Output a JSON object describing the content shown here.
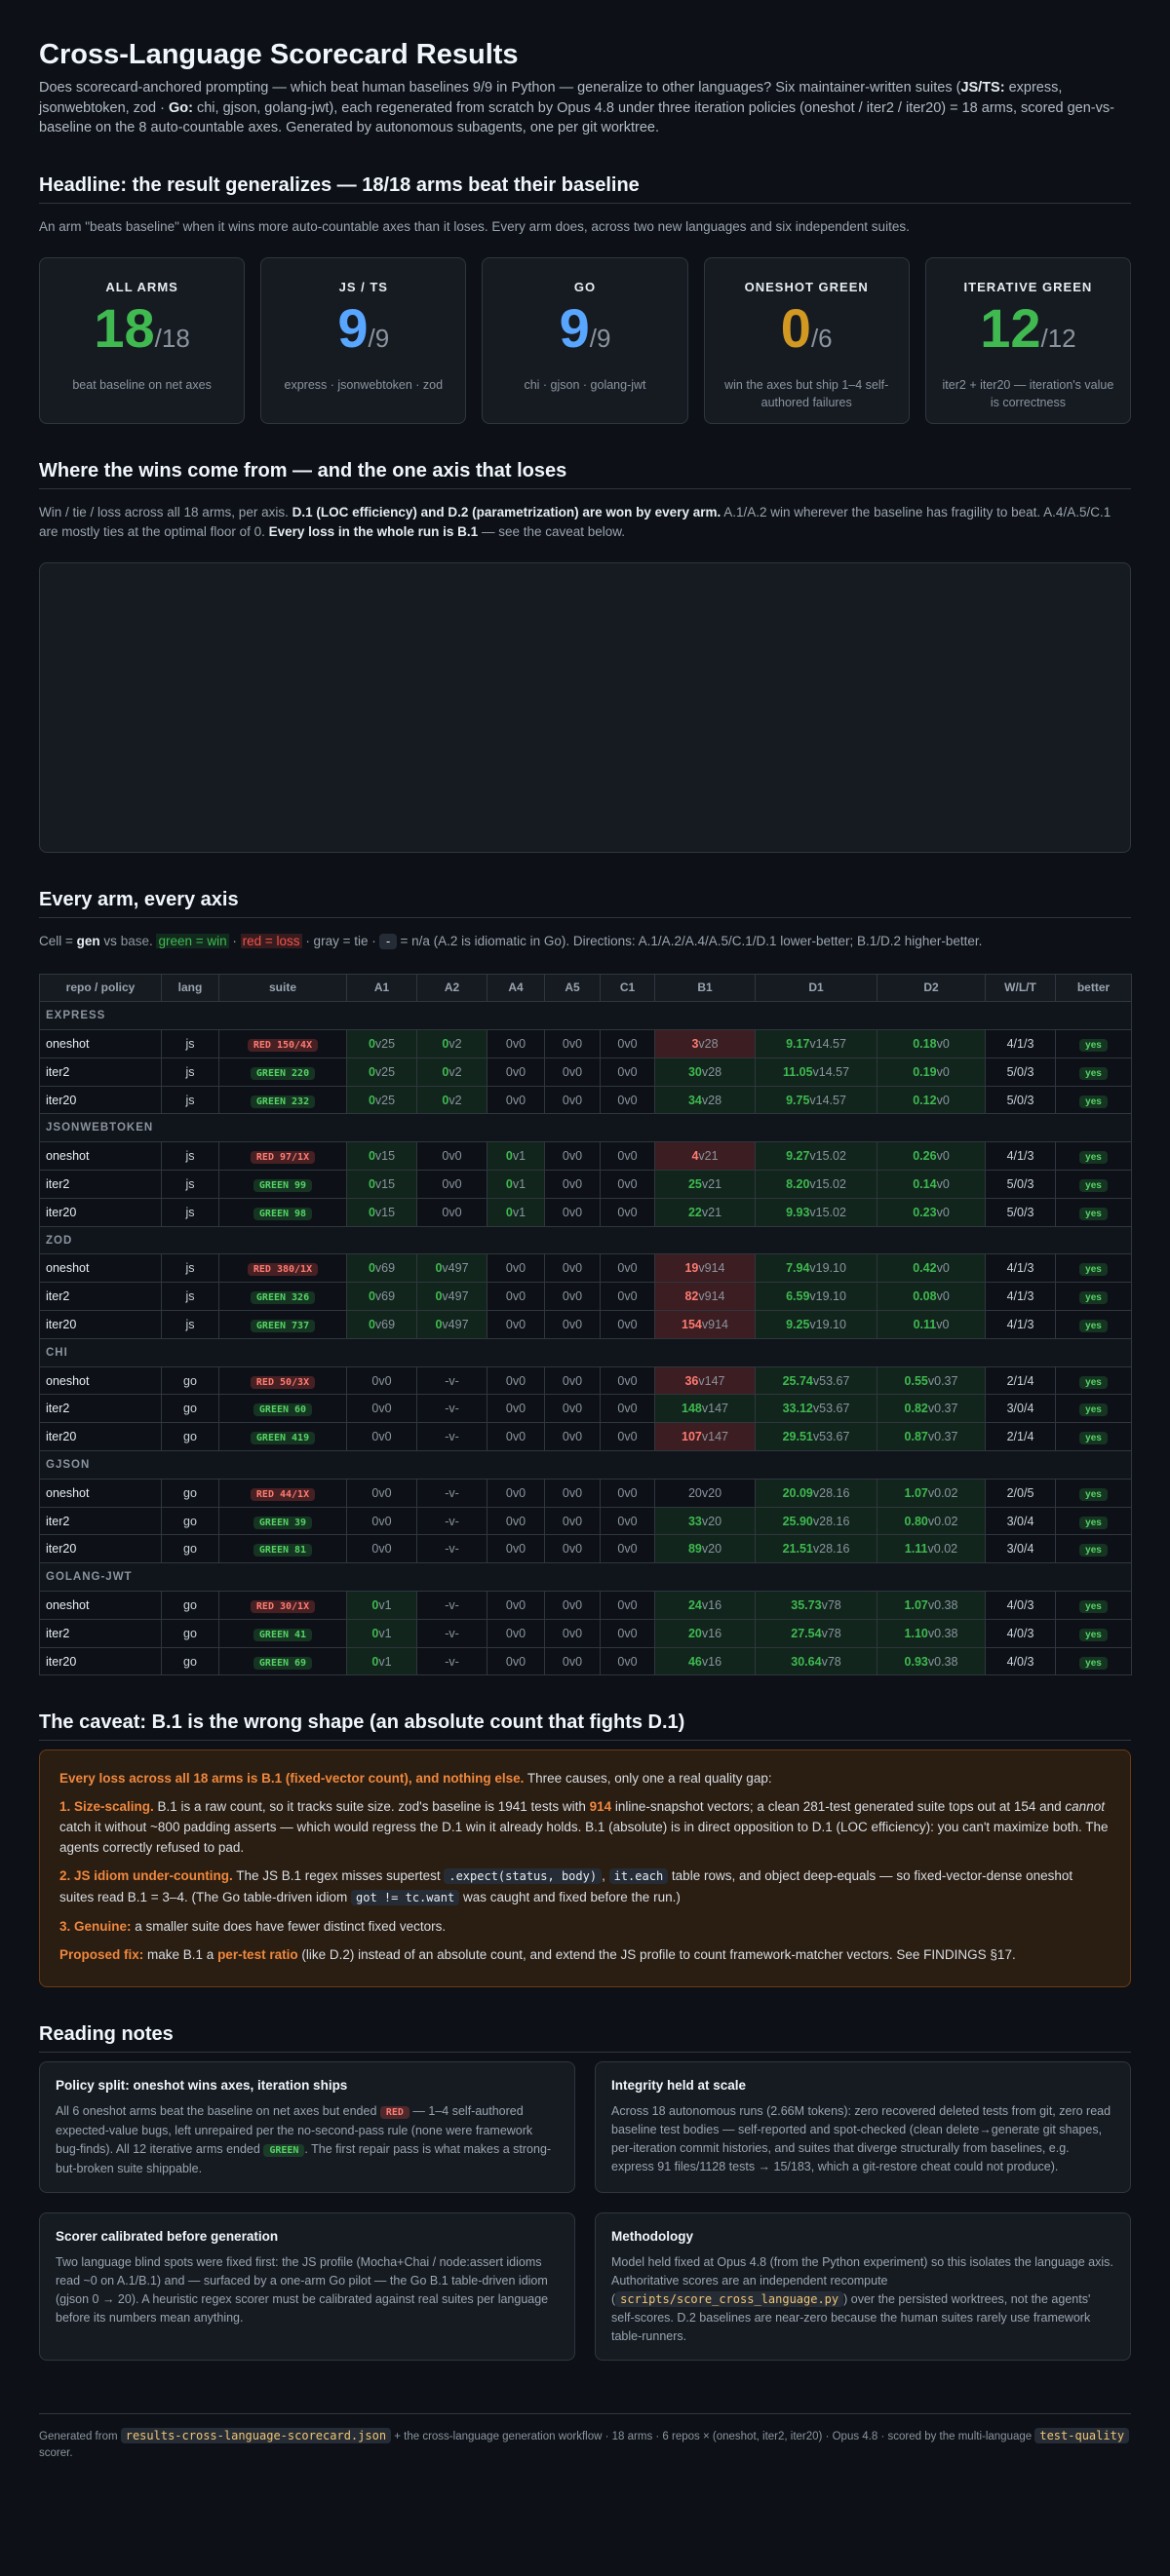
{
  "header": {
    "title": "Cross-Language Scorecard Results",
    "intro": [
      "Does scorecard-anchored prompting — which beat human baselines 9/9 in Python — generalize to other languages? Six maintainer-written suites (",
      {
        "text": "JS/TS:",
        "style": "bold"
      },
      " express, jsonwebtoken, zod · ",
      {
        "text": "Go:",
        "style": "bold"
      },
      " chi, gjson, golang-jwt), each regenerated from scratch by Opus 4.8 under three iteration policies (oneshot / iter2 / iter20) = 18 arms, scored gen-vs-baseline on the 8 auto-countable axes. Generated by autonomous subagents, one per git worktree."
    ]
  },
  "headline": {
    "title": "Headline: the result generalizes — 18/18 arms beat their baseline",
    "desc": "An arm \"beats baseline\" when it wins more auto-countable axes than it loses. Every arm does, across two new languages and six independent suites.",
    "cards": [
      {
        "label": "ALL ARMS",
        "big": "18",
        "denom": "/18",
        "color": "#3fb950",
        "desc": "beat baseline on net axes"
      },
      {
        "label": "JS / TS",
        "big": "9",
        "denom": "/9",
        "color": "#58a6ff",
        "desc": "express · jsonwebtoken · zod"
      },
      {
        "label": "GO",
        "big": "9",
        "denom": "/9",
        "color": "#58a6ff",
        "desc": "chi · gjson · golang-jwt"
      },
      {
        "label": "ONESHOT GREEN",
        "big": "0",
        "denom": "/6",
        "color": "#d29922",
        "desc": "win the axes but ship 1–4 self-authored failures"
      },
      {
        "label": "ITERATIVE GREEN",
        "big": "12",
        "denom": "/12",
        "color": "#3fb950",
        "desc": "iter2 + iter20 — iteration's value is correctness"
      }
    ]
  },
  "wins": {
    "title": "Where the wins come from — and the one axis that loses",
    "desc": [
      "Win / tie / loss across all 18 arms, per axis. ",
      {
        "text": "D.1 (LOC efficiency) and D.2 (parametrization) are won by every arm.",
        "style": "bold"
      },
      " A.1/A.2 win wherever the baseline has fragility to beat. A.4/A.5/C.1 are mostly ties at the optimal floor of 0. ",
      {
        "text": "Every loss in the whole run is B.1",
        "style": "bold"
      },
      " — see the caveat below."
    ]
  },
  "table": {
    "title": "Every arm, every axis",
    "legend": [
      "Cell = ",
      {
        "text": "gen",
        "style": "bold"
      },
      " vs ",
      {
        "text": "base",
        "style": "gray"
      },
      ". ",
      {
        "text": "green = win",
        "style": "win"
      },
      " · ",
      {
        "text": "red = loss",
        "style": "loss"
      },
      " · gray = tie · ",
      {
        "text": "-",
        "style": "code"
      },
      " = n/a (A.2 is idiomatic in Go). Directions: A.1/A.2/A.4/A.5/C.1/D.1 lower-better; B.1/D.2 higher-better."
    ],
    "columns": [
      "repo / policy",
      "lang",
      "suite",
      "A1",
      "A2",
      "A4",
      "A5",
      "C1",
      "B1",
      "D1",
      "D2",
      "W/L/T",
      "better"
    ],
    "axis_direction": [
      "lower",
      "lower",
      "lower",
      "lower",
      "lower",
      "higher",
      "lower",
      "higher"
    ],
    "groups": [
      {
        "name": "EXPRESS",
        "rows": [
          {
            "policy": "oneshot",
            "lang": "js",
            "suite": {
              "text": "RED 150/4X",
              "color": "red"
            },
            "cells": [
              "0v25",
              "0v2",
              "0v0",
              "0v0",
              "0v0",
              "3v28",
              "9.17v14.57",
              "0.18v0"
            ],
            "wlt": "4/1/3",
            "better": "yes"
          },
          {
            "policy": "iter2",
            "lang": "js",
            "suite": {
              "text": "GREEN 220",
              "color": "green"
            },
            "cells": [
              "0v25",
              "0v2",
              "0v0",
              "0v0",
              "0v0",
              "30v28",
              "11.05v14.57",
              "0.19v0"
            ],
            "wlt": "5/0/3",
            "better": "yes"
          },
          {
            "policy": "iter20",
            "lang": "js",
            "suite": {
              "text": "GREEN 232",
              "color": "green"
            },
            "cells": [
              "0v25",
              "0v2",
              "0v0",
              "0v0",
              "0v0",
              "34v28",
              "9.75v14.57",
              "0.12v0"
            ],
            "wlt": "5/0/3",
            "better": "yes"
          }
        ]
      },
      {
        "name": "JSONWEBTOKEN",
        "rows": [
          {
            "policy": "oneshot",
            "lang": "js",
            "suite": {
              "text": "RED 97/1X",
              "color": "red"
            },
            "cells": [
              "0v15",
              "0v0",
              "0v1",
              "0v0",
              "0v0",
              "4v21",
              "9.27v15.02",
              "0.26v0"
            ],
            "wlt": "4/1/3",
            "better": "yes"
          },
          {
            "policy": "iter2",
            "lang": "js",
            "suite": {
              "text": "GREEN 99",
              "color": "green"
            },
            "cells": [
              "0v15",
              "0v0",
              "0v1",
              "0v0",
              "0v0",
              "25v21",
              "8.20v15.02",
              "0.14v0"
            ],
            "wlt": "5/0/3",
            "better": "yes"
          },
          {
            "policy": "iter20",
            "lang": "js",
            "suite": {
              "text": "GREEN 98",
              "color": "green"
            },
            "cells": [
              "0v15",
              "0v0",
              "0v1",
              "0v0",
              "0v0",
              "22v21",
              "9.93v15.02",
              "0.23v0"
            ],
            "wlt": "5/0/3",
            "better": "yes"
          }
        ]
      },
      {
        "name": "ZOD",
        "rows": [
          {
            "policy": "oneshot",
            "lang": "js",
            "suite": {
              "text": "RED 380/1X",
              "color": "red"
            },
            "cells": [
              "0v69",
              "0v497",
              "0v0",
              "0v0",
              "0v0",
              "19v914",
              "7.94v19.10",
              "0.42v0"
            ],
            "wlt": "4/1/3",
            "better": "yes"
          },
          {
            "policy": "iter2",
            "lang": "js",
            "suite": {
              "text": "GREEN 326",
              "color": "green"
            },
            "cells": [
              "0v69",
              "0v497",
              "0v0",
              "0v0",
              "0v0",
              "82v914",
              "6.59v19.10",
              "0.08v0"
            ],
            "wlt": "4/1/3",
            "better": "yes"
          },
          {
            "policy": "iter20",
            "lang": "js",
            "suite": {
              "text": "GREEN 737",
              "color": "green"
            },
            "cells": [
              "0v69",
              "0v497",
              "0v0",
              "0v0",
              "0v0",
              "154v914",
              "9.25v19.10",
              "0.11v0"
            ],
            "wlt": "4/1/3",
            "better": "yes"
          }
        ]
      },
      {
        "name": "CHI",
        "rows": [
          {
            "policy": "oneshot",
            "lang": "go",
            "suite": {
              "text": "RED 50/3X",
              "color": "red"
            },
            "cells": [
              "0v0",
              "-v-",
              "0v0",
              "0v0",
              "0v0",
              "36v147",
              "25.74v53.67",
              "0.55v0.37"
            ],
            "wlt": "2/1/4",
            "better": "yes"
          },
          {
            "policy": "iter2",
            "lang": "go",
            "suite": {
              "text": "GREEN 60",
              "color": "green"
            },
            "cells": [
              "0v0",
              "-v-",
              "0v0",
              "0v0",
              "0v0",
              "148v147",
              "33.12v53.67",
              "0.82v0.37"
            ],
            "wlt": "3/0/4",
            "better": "yes"
          },
          {
            "policy": "iter20",
            "lang": "go",
            "suite": {
              "text": "GREEN 419",
              "color": "green"
            },
            "cells": [
              "0v0",
              "-v-",
              "0v0",
              "0v0",
              "0v0",
              "107v147",
              "29.51v53.67",
              "0.87v0.37"
            ],
            "wlt": "2/1/4",
            "better": "yes"
          }
        ]
      },
      {
        "name": "GJSON",
        "rows": [
          {
            "policy": "oneshot",
            "lang": "go",
            "suite": {
              "text": "RED 44/1X",
              "color": "red"
            },
            "cells": [
              "0v0",
              "-v-",
              "0v0",
              "0v0",
              "0v0",
              "20v20",
              "20.09v28.16",
              "1.07v0.02"
            ],
            "wlt": "2/0/5",
            "better": "yes"
          },
          {
            "policy": "iter2",
            "lang": "go",
            "suite": {
              "text": "GREEN 39",
              "color": "green"
            },
            "cells": [
              "0v0",
              "-v-",
              "0v0",
              "0v0",
              "0v0",
              "33v20",
              "25.90v28.16",
              "0.80v0.02"
            ],
            "wlt": "3/0/4",
            "better": "yes"
          },
          {
            "policy": "iter20",
            "lang": "go",
            "suite": {
              "text": "GREEN 81",
              "color": "green"
            },
            "cells": [
              "0v0",
              "-v-",
              "0v0",
              "0v0",
              "0v0",
              "89v20",
              "21.51v28.16",
              "1.11v0.02"
            ],
            "wlt": "3/0/4",
            "better": "yes"
          }
        ]
      },
      {
        "name": "GOLANG-JWT",
        "rows": [
          {
            "policy": "oneshot",
            "lang": "go",
            "suite": {
              "text": "RED 30/1X",
              "color": "red"
            },
            "cells": [
              "0v1",
              "-v-",
              "0v0",
              "0v0",
              "0v0",
              "24v16",
              "35.73v78",
              "1.07v0.38"
            ],
            "wlt": "4/0/3",
            "better": "yes"
          },
          {
            "policy": "iter2",
            "lang": "go",
            "suite": {
              "text": "GREEN 41",
              "color": "green"
            },
            "cells": [
              "0v1",
              "-v-",
              "0v0",
              "0v0",
              "0v0",
              "20v16",
              "27.54v78",
              "1.10v0.38"
            ],
            "wlt": "4/0/3",
            "better": "yes"
          },
          {
            "policy": "iter20",
            "lang": "go",
            "suite": {
              "text": "GREEN 69",
              "color": "green"
            },
            "cells": [
              "0v1",
              "-v-",
              "0v0",
              "0v0",
              "0v0",
              "46v16",
              "30.64v78",
              "0.93v0.38"
            ],
            "wlt": "4/0/3",
            "better": "yes"
          }
        ]
      }
    ]
  },
  "caveat": {
    "title": "The caveat: B.1 is the wrong shape (an absolute count that fights D.1)",
    "paragraphs": [
      [
        {
          "text": "Every loss across all 18 arms is B.1 (fixed-vector count), and nothing else.",
          "style": "orange"
        },
        " Three causes, only one a real quality gap:"
      ],
      [
        {
          "text": "1. Size-scaling.",
          "style": "orange"
        },
        " B.1 is a raw count, so it tracks suite size. zod's baseline is 1941 tests with ",
        {
          "text": "914",
          "style": "orange"
        },
        " inline-snapshot vectors; a clean 281-test generated suite tops out at 154 and ",
        {
          "text": "cannot",
          "style": "italic"
        },
        " catch it without ~800 padding asserts — which would regress the D.1 win it already holds. B.1 (absolute) is in direct opposition to D.1 (LOC efficiency): you can't maximize both. The agents correctly refused to pad."
      ],
      [
        {
          "text": "2. JS idiom under-counting.",
          "style": "orange"
        },
        " The JS B.1 regex misses supertest ",
        {
          "text": ".expect(status, body)",
          "style": "code"
        },
        ", ",
        {
          "text": "it.each",
          "style": "code"
        },
        " table rows, and object deep-equals — so fixed-vector-dense oneshot suites read B.1 = 3–4. (The Go table-driven idiom ",
        {
          "text": "got != tc.want",
          "style": "code"
        },
        " was caught and fixed before the run.)"
      ],
      [
        {
          "text": "3. Genuine:",
          "style": "orange"
        },
        " a smaller suite does have fewer distinct fixed vectors."
      ],
      [
        {
          "text": "Proposed fix:",
          "style": "orange"
        },
        " make B.1 a ",
        {
          "text": "per-test ratio",
          "style": "orange"
        },
        " (like D.2) instead of an absolute count, and extend the JS profile to count framework-matcher vectors. See FINDINGS §17."
      ]
    ]
  },
  "notes": {
    "title": "Reading notes",
    "cards": [
      {
        "title": "Policy split: oneshot wins axes, iteration ships",
        "body": [
          "All 6 oneshot arms beat the baseline on net axes but ended ",
          {
            "text": "RED",
            "style": "badge-red"
          },
          " — 1–4 self-authored expected-value bugs, left unrepaired per the no-second-pass rule (none were framework bug-finds). All 12 iterative arms ended ",
          {
            "text": "GREEN",
            "style": "badge-green"
          },
          ". The first repair pass is what makes a strong-but-broken suite shippable."
        ]
      },
      {
        "title": "Integrity held at scale",
        "body": [
          "Across 18 autonomous runs (2.66M tokens): zero recovered deleted tests from git, zero read baseline test bodies — self-reported and spot-checked (clean delete→generate git shapes, per-iteration commit histories, and suites that diverge structurally from baselines, e.g. express 91 files/1128 tests → 15/183, which a git-restore cheat could not produce)."
        ]
      },
      {
        "title": "Scorer calibrated before generation",
        "body": [
          "Two language blind spots were fixed first: the JS profile (Mocha+Chai / node:assert idioms read ~0 on A.1/B.1) and — surfaced by a one-arm Go pilot — the Go B.1 table-driven idiom (gjson 0 → 20). A heuristic regex scorer must be calibrated against real suites per language before its numbers mean anything."
        ]
      },
      {
        "title": "Methodology",
        "body": [
          "Model held fixed at Opus 4.8 (from the Python experiment) so this isolates the language axis. Authoritative scores are an independent recompute (",
          {
            "text": "scripts/score_cross_language.py",
            "style": "code-orange"
          },
          ") over the persisted worktrees, not the agents' self-scores. D.2 baselines are near-zero because the human suites rarely use framework table-runners."
        ]
      }
    ]
  },
  "footer": [
    "Generated from ",
    {
      "text": "results-cross-language-scorecard.json",
      "style": "code-orange"
    },
    " + the cross-language generation workflow · 18 arms · 6 repos × (oneshot, iter2, iter20) · Opus 4.8 · scored by the multi-language ",
    {
      "text": "test-quality",
      "style": "code-orange"
    },
    " scorer."
  ]
}
